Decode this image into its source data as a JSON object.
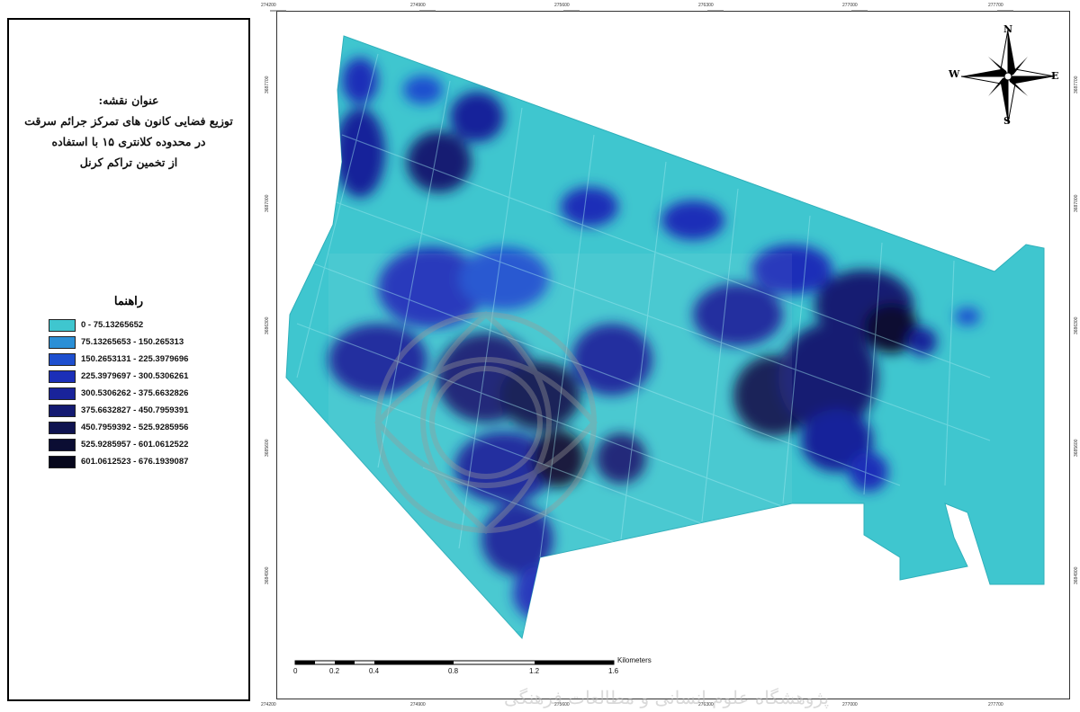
{
  "map_title": {
    "heading": "عنوان نقشه:",
    "line1": "توزیع فضایی کانون های تمرکز جرائم سرقت",
    "line2": "در محدوده کلانتری ۱۵ با استفاده",
    "line3": "از تخمین تراکم کرنل"
  },
  "legend": {
    "title": "راهنما",
    "classes": [
      {
        "label": "0 - 75.13265652",
        "color": "#3fc6cf"
      },
      {
        "label": "75.13265653 - 150.265313",
        "color": "#2a8fd6"
      },
      {
        "label": "150.2653131 - 225.3979696",
        "color": "#1e4fcf"
      },
      {
        "label": "225.3979697 - 300.5306261",
        "color": "#1b2fb8"
      },
      {
        "label": "300.5306262 - 375.6632826",
        "color": "#19239a"
      },
      {
        "label": "375.6632827 - 450.7959391",
        "color": "#141a72"
      },
      {
        "label": "450.7959392 - 525.9285956",
        "color": "#0f1350"
      },
      {
        "label": "525.9285957 - 601.0612522",
        "color": "#0b0d33"
      },
      {
        "label": "601.0612523 - 676.1939087",
        "color": "#06071c"
      }
    ]
  },
  "compass": {
    "n": "N",
    "s": "S",
    "e": "E",
    "w": "W"
  },
  "scale_bar": {
    "unit": "Kilometers",
    "ticks": [
      "0",
      "0.2",
      "0.4",
      "0.8",
      "1.2",
      "1.6"
    ]
  },
  "coords": {
    "top": [
      "274200",
      "274900",
      "275600",
      "276300",
      "277000",
      "277700"
    ],
    "bottom": [
      "274200",
      "274900",
      "275600",
      "276300",
      "277000",
      "277700"
    ],
    "left": [
      "3687700",
      "3687000",
      "3686300",
      "3685600",
      "3684900"
    ],
    "right": [
      "3687700",
      "3687000",
      "3686300",
      "3685600",
      "3684900"
    ]
  },
  "watermark": "پژوهشگاه علوم انسانی و مطالعات فرهنگی"
}
